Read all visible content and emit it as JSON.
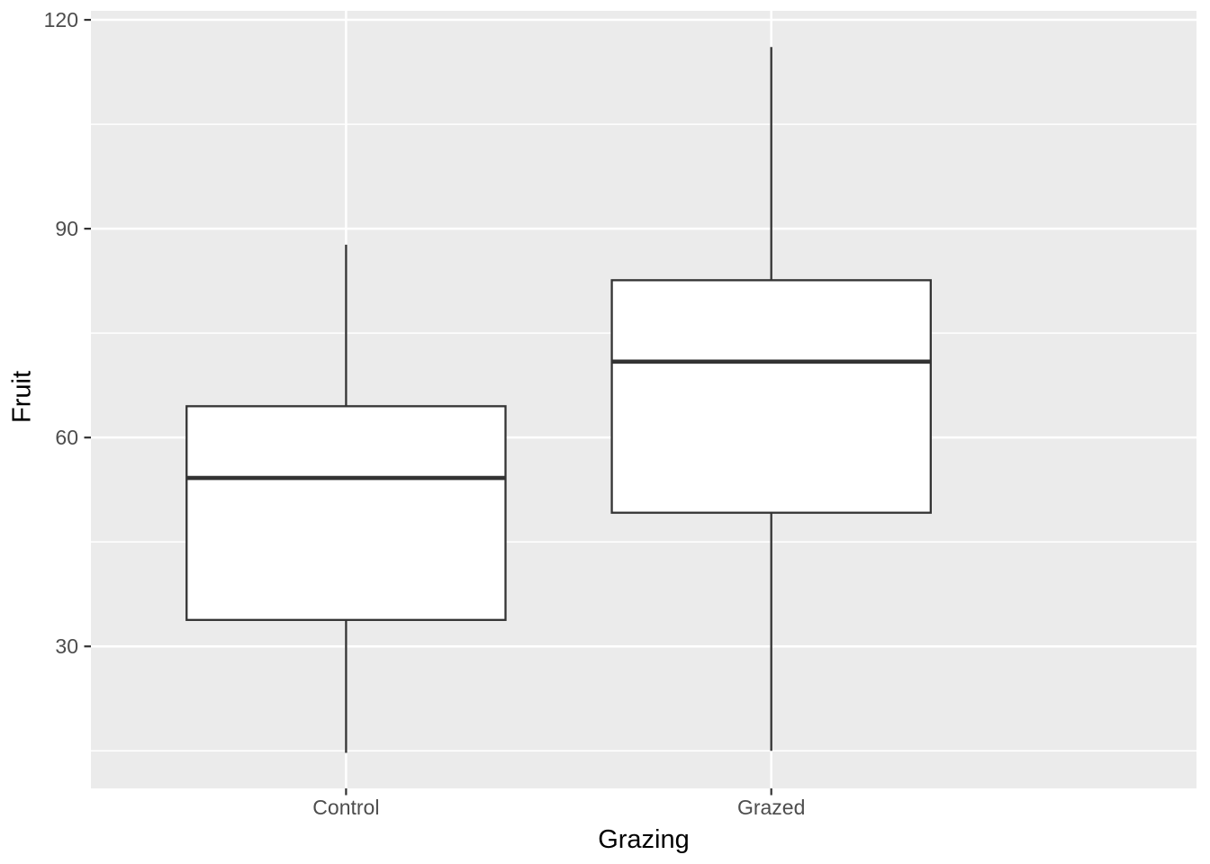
{
  "chart_data": {
    "type": "boxplot",
    "title": "",
    "xlabel": "Grazing",
    "ylabel": "Fruit",
    "categories": [
      "Control",
      "Grazed"
    ],
    "series": [
      {
        "name": "Control",
        "whisker_low": 14.7,
        "q1": 33.8,
        "median": 54.2,
        "q3": 64.5,
        "whisker_high": 87.7,
        "outliers": []
      },
      {
        "name": "Grazed",
        "whisker_low": 15.0,
        "q1": 49.2,
        "median": 70.9,
        "q3": 82.6,
        "whisker_high": 116.1,
        "outliers": []
      }
    ],
    "ylim": [
      9.6,
      121.3
    ],
    "y_ticks": [
      30,
      60,
      90,
      120
    ],
    "y_tick_labels": [
      "30",
      "60",
      "90",
      "120"
    ],
    "y_minor_ticks": [
      15,
      45,
      75,
      105
    ],
    "grid": "horizontal major+minor white lines, vertical white line at each category",
    "legend": "none",
    "theme": {
      "style": "ggplot2-grey",
      "panel_bg": "#EBEBEB",
      "grid_color": "#FFFFFF",
      "box_stroke": "#333333",
      "box_fill": "#FFFFFF",
      "axis_text_color": "#4D4D4D",
      "axis_title_color": "#000000",
      "tick_color": "#333333"
    }
  }
}
